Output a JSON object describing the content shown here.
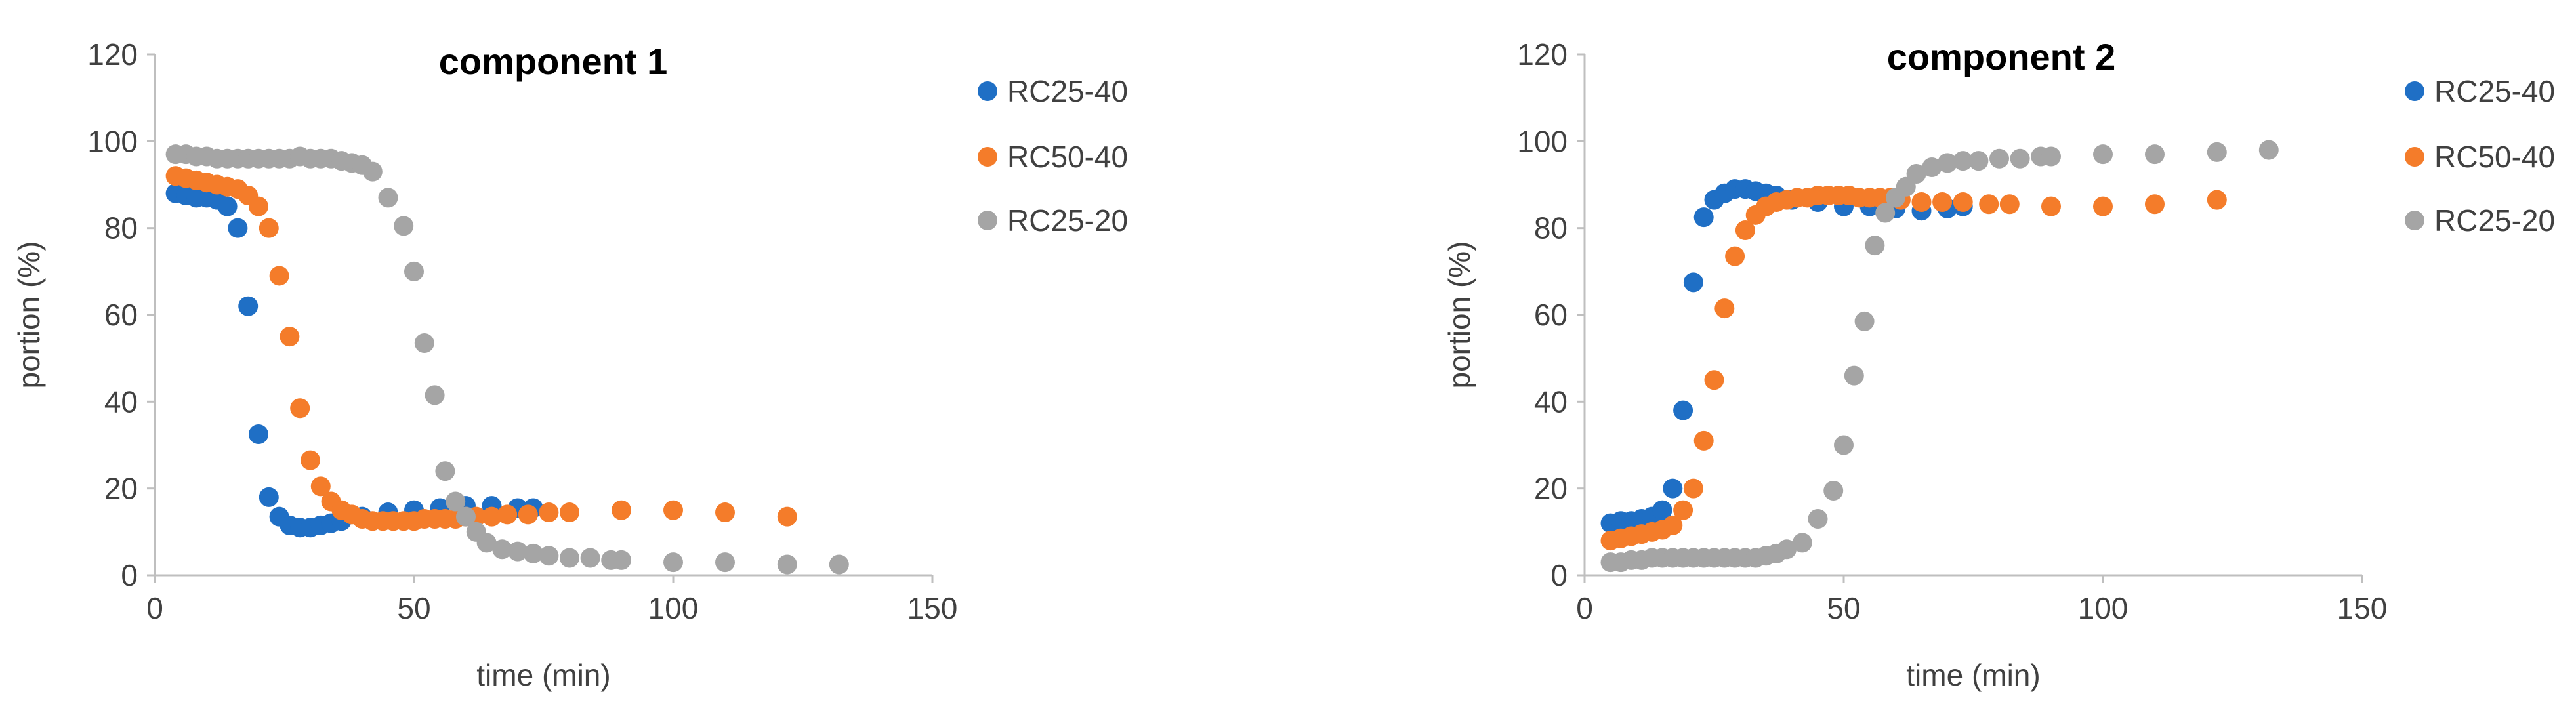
{
  "chart_data": [
    {
      "type": "scatter",
      "title": "component 1",
      "xlabel": "time (min)",
      "ylabel": "portion (%)",
      "xlim": [
        0,
        150
      ],
      "ylim": [
        0,
        120
      ],
      "xticks": [
        0,
        50,
        100,
        150
      ],
      "yticks": [
        0,
        20,
        40,
        60,
        80,
        100,
        120
      ],
      "grid": false,
      "legend_position": "top-right",
      "series": [
        {
          "name": "RC25-40",
          "color": "#1f6fc5",
          "points": [
            [
              4,
              88
            ],
            [
              6,
              87.5
            ],
            [
              8,
              87
            ],
            [
              10,
              87
            ],
            [
              12,
              86.5
            ],
            [
              14,
              85
            ],
            [
              16,
              80
            ],
            [
              18,
              62
            ],
            [
              20,
              32.5
            ],
            [
              22,
              18
            ],
            [
              24,
              13.5
            ],
            [
              26,
              11.5
            ],
            [
              28,
              11
            ],
            [
              30,
              11
            ],
            [
              32,
              11.5
            ],
            [
              34,
              12
            ],
            [
              36,
              12.5
            ],
            [
              40,
              13.5
            ],
            [
              45,
              14.5
            ],
            [
              50,
              15
            ],
            [
              55,
              15.5
            ],
            [
              60,
              16
            ],
            [
              65,
              16
            ],
            [
              70,
              15.5
            ],
            [
              73,
              15.5
            ]
          ]
        },
        {
          "name": "RC50-40",
          "color": "#f47c2a",
          "points": [
            [
              4,
              92
            ],
            [
              6,
              91.5
            ],
            [
              8,
              91
            ],
            [
              10,
              90.5
            ],
            [
              12,
              90
            ],
            [
              14,
              89.5
            ],
            [
              16,
              89
            ],
            [
              18,
              87.5
            ],
            [
              20,
              85
            ],
            [
              22,
              80
            ],
            [
              24,
              69
            ],
            [
              26,
              55
            ],
            [
              28,
              38.5
            ],
            [
              30,
              26.5
            ],
            [
              32,
              20.5
            ],
            [
              34,
              17
            ],
            [
              36,
              15
            ],
            [
              38,
              14
            ],
            [
              40,
              13
            ],
            [
              42,
              12.5
            ],
            [
              44,
              12.5
            ],
            [
              46,
              12.5
            ],
            [
              48,
              12.5
            ],
            [
              50,
              12.5
            ],
            [
              52,
              13
            ],
            [
              54,
              13
            ],
            [
              56,
              13
            ],
            [
              58,
              13
            ],
            [
              60,
              13.5
            ],
            [
              62,
              13.5
            ],
            [
              65,
              13.5
            ],
            [
              68,
              14
            ],
            [
              72,
              14
            ],
            [
              76,
              14.5
            ],
            [
              80,
              14.5
            ],
            [
              90,
              15
            ],
            [
              100,
              15
            ],
            [
              110,
              14.5
            ],
            [
              122,
              13.5
            ]
          ]
        },
        {
          "name": "RC25-20",
          "color": "#a5a5a5",
          "points": [
            [
              4,
              97
            ],
            [
              6,
              97
            ],
            [
              8,
              96.5
            ],
            [
              10,
              96.5
            ],
            [
              12,
              96
            ],
            [
              14,
              96
            ],
            [
              16,
              96
            ],
            [
              18,
              96
            ],
            [
              20,
              96
            ],
            [
              22,
              96
            ],
            [
              24,
              96
            ],
            [
              26,
              96
            ],
            [
              28,
              96.5
            ],
            [
              30,
              96
            ],
            [
              32,
              96
            ],
            [
              34,
              96
            ],
            [
              36,
              95.5
            ],
            [
              38,
              95
            ],
            [
              40,
              94.5
            ],
            [
              42,
              93
            ],
            [
              45,
              87
            ],
            [
              48,
              80.5
            ],
            [
              50,
              70
            ],
            [
              52,
              53.5
            ],
            [
              54,
              41.5
            ],
            [
              56,
              24
            ],
            [
              58,
              17
            ],
            [
              60,
              13.5
            ],
            [
              62,
              10
            ],
            [
              64,
              7.5
            ],
            [
              67,
              6
            ],
            [
              70,
              5.5
            ],
            [
              73,
              5
            ],
            [
              76,
              4.5
            ],
            [
              80,
              4
            ],
            [
              84,
              4
            ],
            [
              88,
              3.5
            ],
            [
              90,
              3.5
            ],
            [
              100,
              3
            ],
            [
              110,
              3
            ],
            [
              122,
              2.5
            ],
            [
              132,
              2.5
            ]
          ]
        }
      ]
    },
    {
      "type": "scatter",
      "title": "component 2",
      "xlabel": "time (min)",
      "ylabel": "portion (%)",
      "xlim": [
        0,
        150
      ],
      "ylim": [
        0,
        120
      ],
      "xticks": [
        0,
        50,
        100,
        150
      ],
      "yticks": [
        0,
        20,
        40,
        60,
        80,
        100,
        120
      ],
      "grid": false,
      "legend_position": "top-right",
      "series": [
        {
          "name": "RC25-40",
          "color": "#1f6fc5",
          "points": [
            [
              5,
              12
            ],
            [
              7,
              12.5
            ],
            [
              9,
              12.5
            ],
            [
              11,
              13
            ],
            [
              13,
              13.5
            ],
            [
              15,
              15
            ],
            [
              17,
              20
            ],
            [
              19,
              38
            ],
            [
              21,
              67.5
            ],
            [
              23,
              82.5
            ],
            [
              25,
              86.5
            ],
            [
              27,
              88
            ],
            [
              29,
              89
            ],
            [
              31,
              89
            ],
            [
              33,
              88.5
            ],
            [
              35,
              88
            ],
            [
              37,
              87.5
            ],
            [
              40,
              86.5
            ],
            [
              45,
              86
            ],
            [
              50,
              85
            ],
            [
              55,
              85
            ],
            [
              60,
              84.5
            ],
            [
              65,
              84
            ],
            [
              70,
              84.5
            ],
            [
              73,
              85
            ]
          ]
        },
        {
          "name": "RC50-40",
          "color": "#f47c2a",
          "points": [
            [
              5,
              8
            ],
            [
              7,
              8.5
            ],
            [
              9,
              9
            ],
            [
              11,
              9.5
            ],
            [
              13,
              10
            ],
            [
              15,
              10.5
            ],
            [
              17,
              11.5
            ],
            [
              19,
              15
            ],
            [
              21,
              20
            ],
            [
              23,
              31
            ],
            [
              25,
              45
            ],
            [
              27,
              61.5
            ],
            [
              29,
              73.5
            ],
            [
              31,
              79.5
            ],
            [
              33,
              83
            ],
            [
              35,
              85
            ],
            [
              37,
              86
            ],
            [
              39,
              86.5
            ],
            [
              41,
              87
            ],
            [
              43,
              87
            ],
            [
              45,
              87.5
            ],
            [
              47,
              87.5
            ],
            [
              49,
              87.5
            ],
            [
              51,
              87.5
            ],
            [
              53,
              87
            ],
            [
              55,
              87
            ],
            [
              57,
              87
            ],
            [
              59,
              87
            ],
            [
              61,
              86.5
            ],
            [
              65,
              86
            ],
            [
              69,
              86
            ],
            [
              73,
              86
            ],
            [
              78,
              85.5
            ],
            [
              82,
              85.5
            ],
            [
              90,
              85
            ],
            [
              100,
              85
            ],
            [
              110,
              85.5
            ],
            [
              122,
              86.5
            ]
          ]
        },
        {
          "name": "RC25-20",
          "color": "#a5a5a5",
          "points": [
            [
              5,
              3
            ],
            [
              7,
              3
            ],
            [
              9,
              3.5
            ],
            [
              11,
              3.5
            ],
            [
              13,
              4
            ],
            [
              15,
              4
            ],
            [
              17,
              4
            ],
            [
              19,
              4
            ],
            [
              21,
              4
            ],
            [
              23,
              4
            ],
            [
              25,
              4
            ],
            [
              27,
              4
            ],
            [
              29,
              4
            ],
            [
              31,
              4
            ],
            [
              33,
              4
            ],
            [
              35,
              4.5
            ],
            [
              37,
              5
            ],
            [
              39,
              6
            ],
            [
              42,
              7.5
            ],
            [
              45,
              13
            ],
            [
              48,
              19.5
            ],
            [
              50,
              30
            ],
            [
              52,
              46
            ],
            [
              54,
              58.5
            ],
            [
              56,
              76
            ],
            [
              58,
              83.5
            ],
            [
              60,
              87
            ],
            [
              62,
              89.5
            ],
            [
              64,
              92.5
            ],
            [
              67,
              94
            ],
            [
              70,
              95
            ],
            [
              73,
              95.5
            ],
            [
              76,
              95.5
            ],
            [
              80,
              96
            ],
            [
              84,
              96
            ],
            [
              88,
              96.5
            ],
            [
              90,
              96.5
            ],
            [
              100,
              97
            ],
            [
              110,
              97
            ],
            [
              122,
              97.5
            ],
            [
              132,
              98
            ]
          ]
        }
      ]
    }
  ]
}
